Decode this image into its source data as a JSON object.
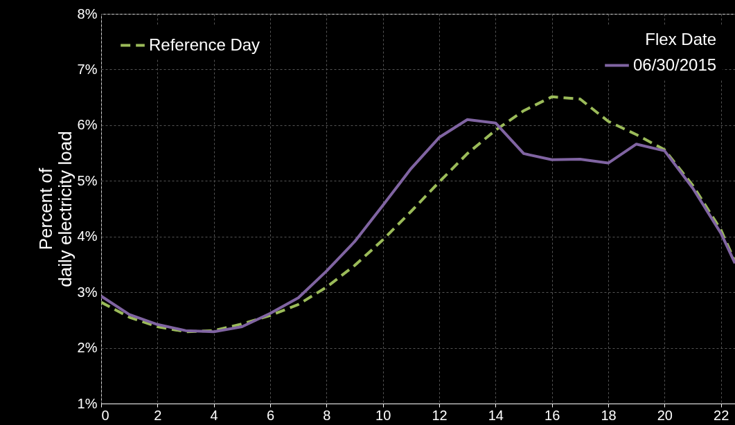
{
  "chart_data": {
    "type": "line",
    "ylabel": "Percent of\ndaily electricity load",
    "legend_title": "Flex Date",
    "legend": "top",
    "grid": true,
    "marker": "none",
    "xlim": [
      0,
      22.5
    ],
    "xticks": [
      0,
      2,
      4,
      6,
      8,
      10,
      12,
      14,
      16,
      18,
      20,
      22
    ],
    "ylim": [
      1,
      8
    ],
    "yticks": [
      {
        "value": 1,
        "label": "1%"
      },
      {
        "value": 2,
        "label": "2%"
      },
      {
        "value": 3,
        "label": "3%"
      },
      {
        "value": 4,
        "label": "4%"
      },
      {
        "value": 5,
        "label": "5%"
      },
      {
        "value": 6,
        "label": "6%"
      },
      {
        "value": 7,
        "label": "7%"
      },
      {
        "value": 8,
        "label": "8%"
      }
    ],
    "x": [
      0,
      1,
      2,
      3,
      4,
      5,
      6,
      7,
      8,
      9,
      10,
      11,
      12,
      13,
      14,
      15,
      16,
      17,
      18,
      19,
      20,
      21,
      22,
      22.5
    ],
    "series": [
      {
        "name": "Reference Day",
        "color": "#9bbb59",
        "line_style": "dashed",
        "values": [
          2.82,
          2.55,
          2.38,
          2.29,
          2.31,
          2.43,
          2.58,
          2.78,
          3.09,
          3.48,
          3.94,
          4.45,
          4.98,
          5.49,
          5.91,
          6.26,
          6.51,
          6.47,
          6.07,
          5.83,
          5.56,
          4.92,
          4.12,
          3.55
        ]
      },
      {
        "name": "06/30/2015",
        "color": "#8064a2",
        "line_style": "solid",
        "values": [
          2.93,
          2.6,
          2.42,
          2.31,
          2.29,
          2.38,
          2.62,
          2.9,
          3.38,
          3.91,
          4.56,
          5.22,
          5.78,
          6.1,
          6.04,
          5.49,
          5.38,
          5.39,
          5.32,
          5.66,
          5.54,
          4.87,
          4.06,
          3.52
        ]
      }
    ]
  }
}
